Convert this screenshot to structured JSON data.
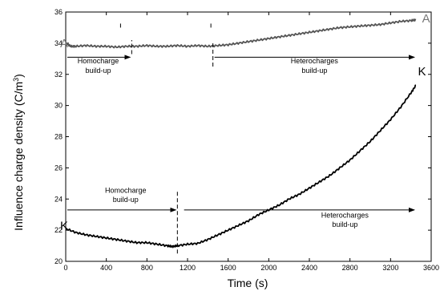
{
  "chart_data": {
    "type": "line",
    "xlabel": "Time (s)",
    "ylabel_main": "Influence charge density (C/m",
    "ylabel_sup": "3",
    "ylabel_close": ")",
    "xlim": [
      0,
      3600
    ],
    "ylim": [
      20,
      36
    ],
    "xticks": [
      0,
      400,
      800,
      1200,
      1600,
      2000,
      2400,
      2800,
      3200,
      3600
    ],
    "yticks": [
      20,
      22,
      24,
      26,
      28,
      30,
      32,
      34,
      36
    ],
    "grid": false,
    "series": [
      {
        "label": "A",
        "color": "#555555",
        "points": [
          [
            0,
            34.0
          ],
          [
            50,
            33.8
          ],
          [
            100,
            33.8
          ],
          [
            200,
            33.85
          ],
          [
            300,
            33.8
          ],
          [
            400,
            33.8
          ],
          [
            500,
            33.75
          ],
          [
            600,
            33.8
          ],
          [
            700,
            33.8
          ],
          [
            800,
            33.85
          ],
          [
            900,
            33.8
          ],
          [
            1000,
            33.8
          ],
          [
            1100,
            33.85
          ],
          [
            1200,
            33.8
          ],
          [
            1300,
            33.85
          ],
          [
            1400,
            33.8
          ],
          [
            1500,
            33.85
          ],
          [
            1600,
            33.9
          ],
          [
            1700,
            34.0
          ],
          [
            1800,
            34.1
          ],
          [
            1900,
            34.2
          ],
          [
            2000,
            34.3
          ],
          [
            2100,
            34.4
          ],
          [
            2200,
            34.5
          ],
          [
            2300,
            34.6
          ],
          [
            2400,
            34.7
          ],
          [
            2500,
            34.8
          ],
          [
            2600,
            34.9
          ],
          [
            2700,
            35.0
          ],
          [
            2800,
            35.05
          ],
          [
            2900,
            35.1
          ],
          [
            3000,
            35.15
          ],
          [
            3100,
            35.2
          ],
          [
            3200,
            35.3
          ],
          [
            3300,
            35.4
          ],
          [
            3400,
            35.45
          ],
          [
            3450,
            35.5
          ]
        ]
      },
      {
        "label": "K",
        "color": "#000000",
        "points": [
          [
            0,
            22.1
          ],
          [
            100,
            21.85
          ],
          [
            200,
            21.7
          ],
          [
            300,
            21.6
          ],
          [
            400,
            21.5
          ],
          [
            500,
            21.4
          ],
          [
            600,
            21.3
          ],
          [
            700,
            21.2
          ],
          [
            800,
            21.2
          ],
          [
            900,
            21.1
          ],
          [
            1000,
            21.0
          ],
          [
            1050,
            20.95
          ],
          [
            1100,
            21.0
          ],
          [
            1200,
            21.1
          ],
          [
            1300,
            21.15
          ],
          [
            1400,
            21.4
          ],
          [
            1500,
            21.7
          ],
          [
            1600,
            22.0
          ],
          [
            1700,
            22.3
          ],
          [
            1800,
            22.6
          ],
          [
            1900,
            23.0
          ],
          [
            2000,
            23.3
          ],
          [
            2100,
            23.6
          ],
          [
            2200,
            24.0
          ],
          [
            2300,
            24.3
          ],
          [
            2400,
            24.7
          ],
          [
            2500,
            25.1
          ],
          [
            2600,
            25.5
          ],
          [
            2700,
            26.0
          ],
          [
            2800,
            26.5
          ],
          [
            2900,
            27.1
          ],
          [
            3000,
            27.7
          ],
          [
            3100,
            28.4
          ],
          [
            3200,
            29.1
          ],
          [
            3300,
            29.9
          ],
          [
            3400,
            30.8
          ],
          [
            3450,
            31.3
          ]
        ]
      }
    ],
    "annotations": [
      {
        "id": "a-homo",
        "line1": "Homocharge",
        "line2": "build-up",
        "arrow_y": 33.1,
        "x_start": 0,
        "x_end": 650,
        "text_x": 320,
        "text_y1": 32.7,
        "text_y2": 32.1
      },
      {
        "id": "a-hetero",
        "line1": "Heterocharges",
        "line2": "build-up",
        "arrow_y": 33.1,
        "x_start": 1450,
        "x_end": 3450,
        "text_x": 2450,
        "text_y1": 32.7,
        "text_y2": 32.1
      },
      {
        "id": "k-homo",
        "line1": "Homocharge",
        "line2": "build-up",
        "arrow_y": 23.3,
        "x_start": 0,
        "x_end": 1100,
        "text_x": 590,
        "text_y1": 24.4,
        "text_y2": 23.8
      },
      {
        "id": "k-hetero",
        "line1": "Heterocharges",
        "line2": "build-up",
        "arrow_y": 23.3,
        "x_start": 1150,
        "x_end": 3450,
        "text_x": 2750,
        "text_y1": 22.8,
        "text_y2": 22.2
      }
    ],
    "dividers": [
      {
        "id": "a-div-1",
        "x": 650,
        "y1": 33.3,
        "y2": 34.2
      },
      {
        "id": "a-div-2",
        "x": 1450,
        "y1": 32.5,
        "y2": 34.1
      },
      {
        "id": "a-tick-1",
        "x": 540,
        "y1": 35.0,
        "y2": 35.3
      },
      {
        "id": "a-tick-2",
        "x": 1430,
        "y1": 35.0,
        "y2": 35.3
      },
      {
        "id": "k-div",
        "x": 1100,
        "y1": 20.5,
        "y2": 24.6
      }
    ],
    "curve_labels": [
      {
        "id": "label-a-left",
        "text": "A",
        "x": -55,
        "y": 34.0,
        "color": "#777777"
      },
      {
        "id": "label-a-right",
        "text": "A",
        "x": 3510,
        "y": 35.6,
        "color": "#777777"
      },
      {
        "id": "label-k-left",
        "text": "K",
        "x": -55,
        "y": 22.3,
        "color": "#000000"
      },
      {
        "id": "label-k-right",
        "text": "K",
        "x": 3470,
        "y": 32.2,
        "color": "#000000"
      }
    ]
  }
}
